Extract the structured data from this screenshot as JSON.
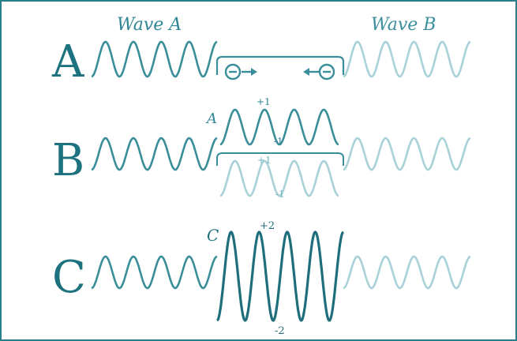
{
  "rows": {
    "a": {
      "letter": "A"
    },
    "b": {
      "letter": "B"
    },
    "c": {
      "letter": "C"
    }
  },
  "titles": {
    "wave_a": "Wave A",
    "wave_b": "Wave B"
  },
  "labels": {
    "top_wave": "A",
    "top_plus": "+1",
    "top_minus": "-1",
    "bottom_plus": "+1",
    "bottom_minus": "-1",
    "sum_wave": "C",
    "sum_plus": "+2",
    "sum_minus": "-2"
  },
  "symbols": {
    "charge": "minus-charge",
    "arrow_right": "arrow-right",
    "arrow_left": "arrow-left"
  },
  "colors": {
    "frame": "#2a7f8c",
    "wave_a": "#3a8e9a",
    "wave_b": "#a9d2d8",
    "result": "#1f6e7b",
    "text": "#1d7280"
  }
}
